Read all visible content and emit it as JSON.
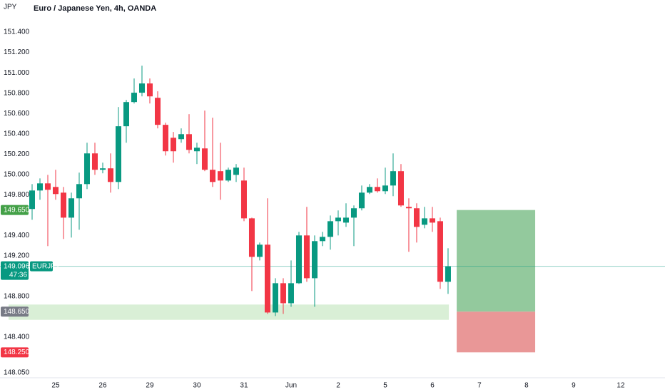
{
  "chart_data": {
    "type": "candlestick",
    "title": "Euro / Japanese Yen, 4h, OANDA",
    "currency": "JPY",
    "up_color": "#089981",
    "down_color": "#f23645",
    "xlim": [
      -4.09,
      80.64
    ],
    "ylim": [
      148.0,
      151.716
    ],
    "grid": false,
    "xticks": [
      {
        "value": 3,
        "label": "25"
      },
      {
        "value": 9,
        "label": "26"
      },
      {
        "value": 15,
        "label": "29"
      },
      {
        "value": 21,
        "label": "30"
      },
      {
        "value": 27,
        "label": "31"
      },
      {
        "value": 33,
        "label": "Jun"
      },
      {
        "value": 39,
        "label": "2"
      },
      {
        "value": 45,
        "label": "5"
      },
      {
        "value": 51,
        "label": "6"
      },
      {
        "value": 57,
        "label": "7"
      },
      {
        "value": 63,
        "label": "8"
      },
      {
        "value": 69,
        "label": "9"
      },
      {
        "value": 75,
        "label": "12"
      }
    ],
    "yticks": [
      {
        "value": 148.05,
        "label": "148.050"
      },
      {
        "value": 148.4,
        "label": "148.400"
      },
      {
        "value": 148.8,
        "label": "148.800"
      },
      {
        "value": 149.2,
        "label": "149.200"
      },
      {
        "value": 149.4,
        "label": "149.400"
      },
      {
        "value": 149.8,
        "label": "149.800"
      },
      {
        "value": 150.0,
        "label": "150.000"
      },
      {
        "value": 150.2,
        "label": "150.200"
      },
      {
        "value": 150.4,
        "label": "150.400"
      },
      {
        "value": 150.6,
        "label": "150.600"
      },
      {
        "value": 150.8,
        "label": "150.800"
      },
      {
        "value": 151.0,
        "label": "151.000"
      },
      {
        "value": 151.2,
        "label": "151.200"
      },
      {
        "value": 151.4,
        "label": "151.400"
      }
    ],
    "open": [
      149.66,
      149.842,
      149.912,
      149.877,
      149.821,
      149.575,
      149.765,
      149.905,
      150.207,
      150.046,
      150.06,
      149.926,
      150.474,
      150.712,
      150.804,
      150.895,
      150.754,
      150.488,
      150.361,
      150.347,
      150.396,
      150.228,
      150.256,
      150.046,
      150.032,
      149.94,
      149.996,
      149.94,
      149.568,
      149.189,
      149.309,
      148.642,
      148.93,
      148.733,
      148.93,
      149.4,
      148.979,
      149.344,
      149.386,
      149.54,
      149.526,
      149.575,
      149.667,
      149.821,
      149.877,
      149.835,
      149.891,
      150.032,
      149.681,
      149.667,
      149.505,
      149.568,
      149.54,
      148.944
    ],
    "high": [
      149.905,
      149.961,
      149.996,
      150.046,
      149.877,
      149.821,
      150.018,
      150.312,
      150.312,
      150.116,
      150.207,
      150.663,
      150.733,
      150.944,
      151.07,
      150.944,
      150.818,
      150.509,
      150.418,
      150.453,
      150.593,
      150.312,
      150.628,
      150.558,
      150.312,
      150.067,
      150.102,
      150.067,
      149.575,
      149.33,
      149.765,
      148.979,
      148.979,
      149.154,
      149.435,
      149.681,
      149.4,
      149.435,
      149.596,
      149.646,
      149.716,
      149.695,
      149.891,
      149.905,
      149.961,
      150.067,
      150.207,
      150.102,
      149.765,
      149.716,
      149.681,
      149.681,
      149.575,
      149.274
    ],
    "low": [
      149.554,
      149.751,
      149.295,
      149.751,
      149.365,
      149.379,
      149.456,
      149.856,
      149.996,
      150.011,
      149.821,
      149.856,
      150.312,
      150.698,
      150.768,
      150.698,
      150.453,
      150.186,
      150.116,
      150.312,
      150.207,
      150.102,
      150.032,
      149.877,
      149.751,
      149.926,
      149.926,
      149.54,
      148.853,
      149.154,
      148.628,
      148.607,
      148.628,
      148.698,
      148.923,
      148.944,
      148.698,
      149.295,
      149.26,
      149.4,
      149.484,
      149.295,
      149.646,
      149.807,
      149.821,
      149.807,
      149.786,
      149.681,
      149.239,
      149.33,
      149.47,
      149.435,
      148.874,
      148.825
    ],
    "close": [
      149.842,
      149.912,
      149.849,
      149.807,
      149.575,
      149.765,
      149.905,
      150.207,
      150.046,
      150.06,
      149.926,
      150.474,
      150.712,
      150.804,
      150.895,
      150.768,
      150.488,
      150.228,
      150.228,
      150.396,
      150.242,
      150.263,
      150.046,
      149.926,
      149.94,
      150.046,
      150.067,
      149.568,
      149.189,
      149.309,
      148.642,
      148.93,
      148.733,
      148.93,
      149.4,
      148.979,
      149.344,
      149.386,
      149.54,
      149.575,
      149.575,
      149.667,
      149.821,
      149.877,
      149.835,
      149.891,
      150.032,
      149.695,
      149.667,
      149.484,
      149.568,
      149.526,
      148.944,
      149.096
    ],
    "last_price": {
      "value": 149.096,
      "label": "149.096",
      "countdown": "47:36",
      "symbol": "EURJPY"
    },
    "zone": {
      "low": 148.57,
      "high": 148.72,
      "start": -3,
      "end": 53.1,
      "color": "#d9efd6"
    },
    "position": {
      "start": 54.1,
      "end": 64.1,
      "target": {
        "value": 149.65,
        "label": "149.650"
      },
      "entry": {
        "value": 148.65,
        "label": "148.650"
      },
      "stop": {
        "value": 148.25,
        "label": "148.250"
      },
      "profit_color": "#93c99d",
      "loss_color": "#e99797"
    }
  }
}
